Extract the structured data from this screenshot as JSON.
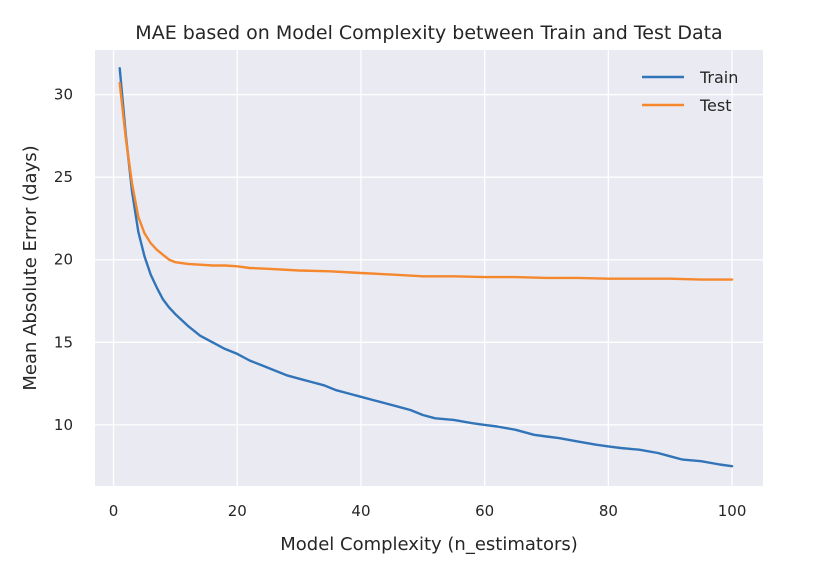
{
  "chart_data": {
    "type": "line",
    "title": "MAE based on Model Complexity between Train and Test Data",
    "xlabel": "Model Complexity (n_estimators)",
    "ylabel": "Mean Absolute Error (days)",
    "xlim": [
      -3,
      105
    ],
    "ylim": [
      6.3,
      32.7
    ],
    "xticks": [
      0,
      20,
      40,
      60,
      80,
      100
    ],
    "yticks": [
      10,
      15,
      20,
      25,
      30
    ],
    "grid": true,
    "legend": "top-right",
    "background": "#eaeaf2",
    "series": [
      {
        "name": "Train",
        "color": "#3274b8",
        "x": [
          1,
          2,
          3,
          4,
          5,
          6,
          7,
          8,
          9,
          10,
          12,
          14,
          16,
          18,
          20,
          22,
          24,
          26,
          28,
          30,
          32,
          34,
          36,
          38,
          40,
          42,
          44,
          46,
          48,
          50,
          52,
          55,
          58,
          60,
          62,
          65,
          68,
          70,
          72,
          75,
          78,
          80,
          82,
          85,
          88,
          90,
          92,
          95,
          98,
          100
        ],
        "y": [
          31.6,
          27.5,
          24.1,
          21.7,
          20.2,
          19.1,
          18.3,
          17.6,
          17.1,
          16.7,
          16.0,
          15.4,
          15.0,
          14.6,
          14.3,
          13.9,
          13.6,
          13.3,
          13.0,
          12.8,
          12.6,
          12.4,
          12.1,
          11.9,
          11.7,
          11.5,
          11.3,
          11.1,
          10.9,
          10.6,
          10.4,
          10.3,
          10.1,
          10.0,
          9.9,
          9.7,
          9.4,
          9.3,
          9.2,
          9.0,
          8.8,
          8.7,
          8.6,
          8.5,
          8.3,
          8.1,
          7.9,
          7.8,
          7.6,
          7.5
        ]
      },
      {
        "name": "Test",
        "color": "#f5872d",
        "x": [
          1,
          2,
          3,
          4,
          5,
          6,
          7,
          8,
          9,
          10,
          12,
          14,
          16,
          18,
          20,
          22,
          25,
          30,
          35,
          40,
          45,
          50,
          55,
          60,
          65,
          70,
          75,
          80,
          85,
          90,
          95,
          100
        ],
        "y": [
          30.7,
          27.3,
          24.6,
          22.6,
          21.6,
          21.0,
          20.6,
          20.3,
          20.0,
          19.85,
          19.75,
          19.7,
          19.65,
          19.65,
          19.6,
          19.5,
          19.45,
          19.35,
          19.3,
          19.2,
          19.1,
          19.0,
          19.0,
          18.95,
          18.95,
          18.9,
          18.9,
          18.85,
          18.85,
          18.85,
          18.8,
          18.8
        ]
      }
    ]
  }
}
